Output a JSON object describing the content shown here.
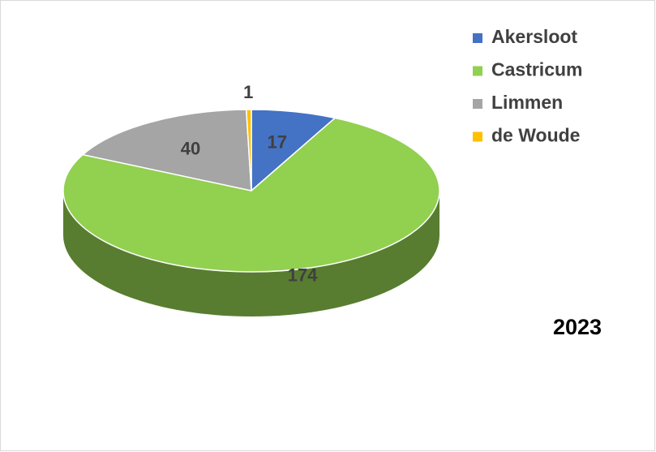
{
  "chart_data": {
    "type": "pie",
    "title": "2023",
    "categories": [
      "Akersloot",
      "Castricum",
      "Limmen",
      "de Woude"
    ],
    "values": [
      17,
      174,
      40,
      1
    ],
    "colors": [
      "#4472c4",
      "#92d050",
      "#a5a5a5",
      "#ffc000"
    ],
    "legend": "top-right"
  }
}
